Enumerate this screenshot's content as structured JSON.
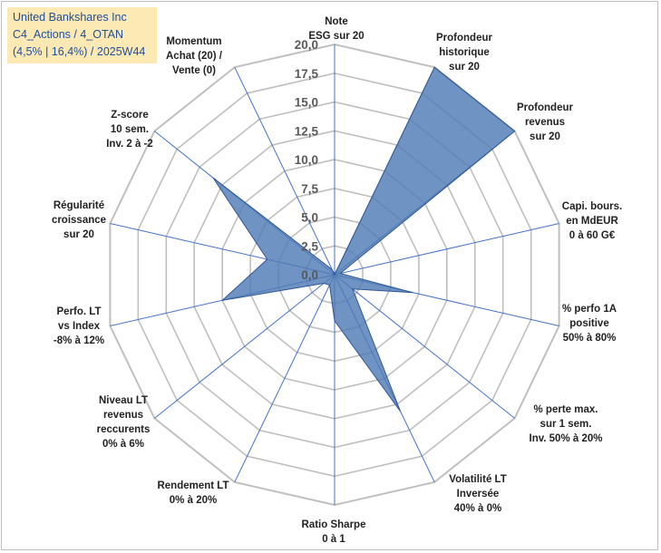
{
  "title_box": {
    "line1": "United Bankshares Inc",
    "line2": "C4_Actions / 4_OTAN",
    "line3": "(4,5% | 16,4%) / 2025W44"
  },
  "colors": {
    "fill": "#4f7bb5",
    "stroke": "#2f5597",
    "grid": "#bfbfbf",
    "spoke": "#4472c4",
    "title_bg": "#fde9b4",
    "title_text": "#1f4e9a"
  },
  "chart_data": {
    "type": "radar",
    "title": "United Bankshares Inc C4_Actions / 4_OTAN (4,5% | 16,4%) / 2025W44",
    "rmin": 0,
    "rmax": 20,
    "ticks": [
      0,
      2.5,
      5,
      7.5,
      10,
      12.5,
      15,
      17.5,
      20
    ],
    "tick_labels": [
      "0,0",
      "2,5",
      "5,0",
      "7,5",
      "10,0",
      "12,5",
      "15,0",
      "17,5",
      "20,0"
    ],
    "axes": [
      {
        "lines": [
          "Note",
          "ESG sur 20"
        ],
        "value": 0
      },
      {
        "lines": [
          "Profondeur",
          "historique",
          "sur 20"
        ],
        "value": 20
      },
      {
        "lines": [
          "Profondeur",
          "revenus",
          "sur 20"
        ],
        "value": 20
      },
      {
        "lines": [
          "Capi. bours.",
          "en MdEUR",
          "0 à 60 G€"
        ],
        "value": 0.5
      },
      {
        "lines": [
          "% perfo 1A",
          "positive",
          "50% à 80%"
        ],
        "value": 7
      },
      {
        "lines": [
          "% perte max.",
          "sur 1 sem.",
          "Inv. 50% à 20%"
        ],
        "value": 2
      },
      {
        "lines": [
          "Volatilité LT",
          "Inversée",
          "40% à 0%"
        ],
        "value": 13.2
      },
      {
        "lines": [
          "Ratio Sharpe",
          "0 à 1"
        ],
        "value": 4
      },
      {
        "lines": [
          "Rendement LT",
          "0% à 20%"
        ],
        "value": 1
      },
      {
        "lines": [
          "Niveau LT",
          "revenus",
          "reccurents",
          "0% à 6%"
        ],
        "value": 1.2
      },
      {
        "lines": [
          "Perfo. LT",
          "vs Index",
          "-8% à 12%"
        ],
        "value": 10
      },
      {
        "lines": [
          "Régularité",
          "croissance",
          "sur 20"
        ],
        "value": 6
      },
      {
        "lines": [
          "Z-score",
          "10 sem.",
          "Inv. 2 à -2"
        ],
        "value": 13.5
      },
      {
        "lines": [
          "Momentum",
          "Achat (20) /",
          "Vente (0)"
        ],
        "value": 0.5
      }
    ]
  }
}
